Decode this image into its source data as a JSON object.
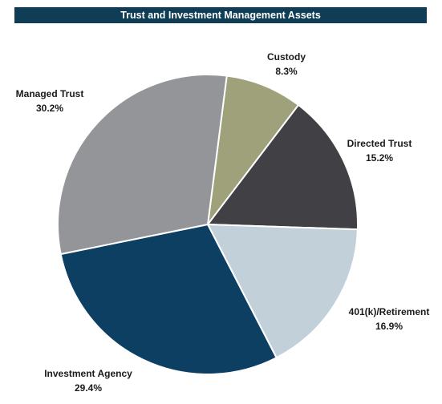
{
  "chart_data": {
    "type": "pie",
    "title": "Trust and Investment Management Assets",
    "categories": [
      "Custody",
      "Directed Trust",
      "401(k)/Retirement",
      "Investment Agency",
      "Managed Trust"
    ],
    "values": [
      8.3,
      15.2,
      16.9,
      29.4,
      30.2
    ],
    "value_labels": [
      "8.3%",
      "15.2%",
      "16.9%",
      "29.4%",
      "30.2%"
    ],
    "colors": [
      "#9ea17a",
      "#414045",
      "#c2d0d9",
      "#0d3f63",
      "#939598"
    ]
  }
}
